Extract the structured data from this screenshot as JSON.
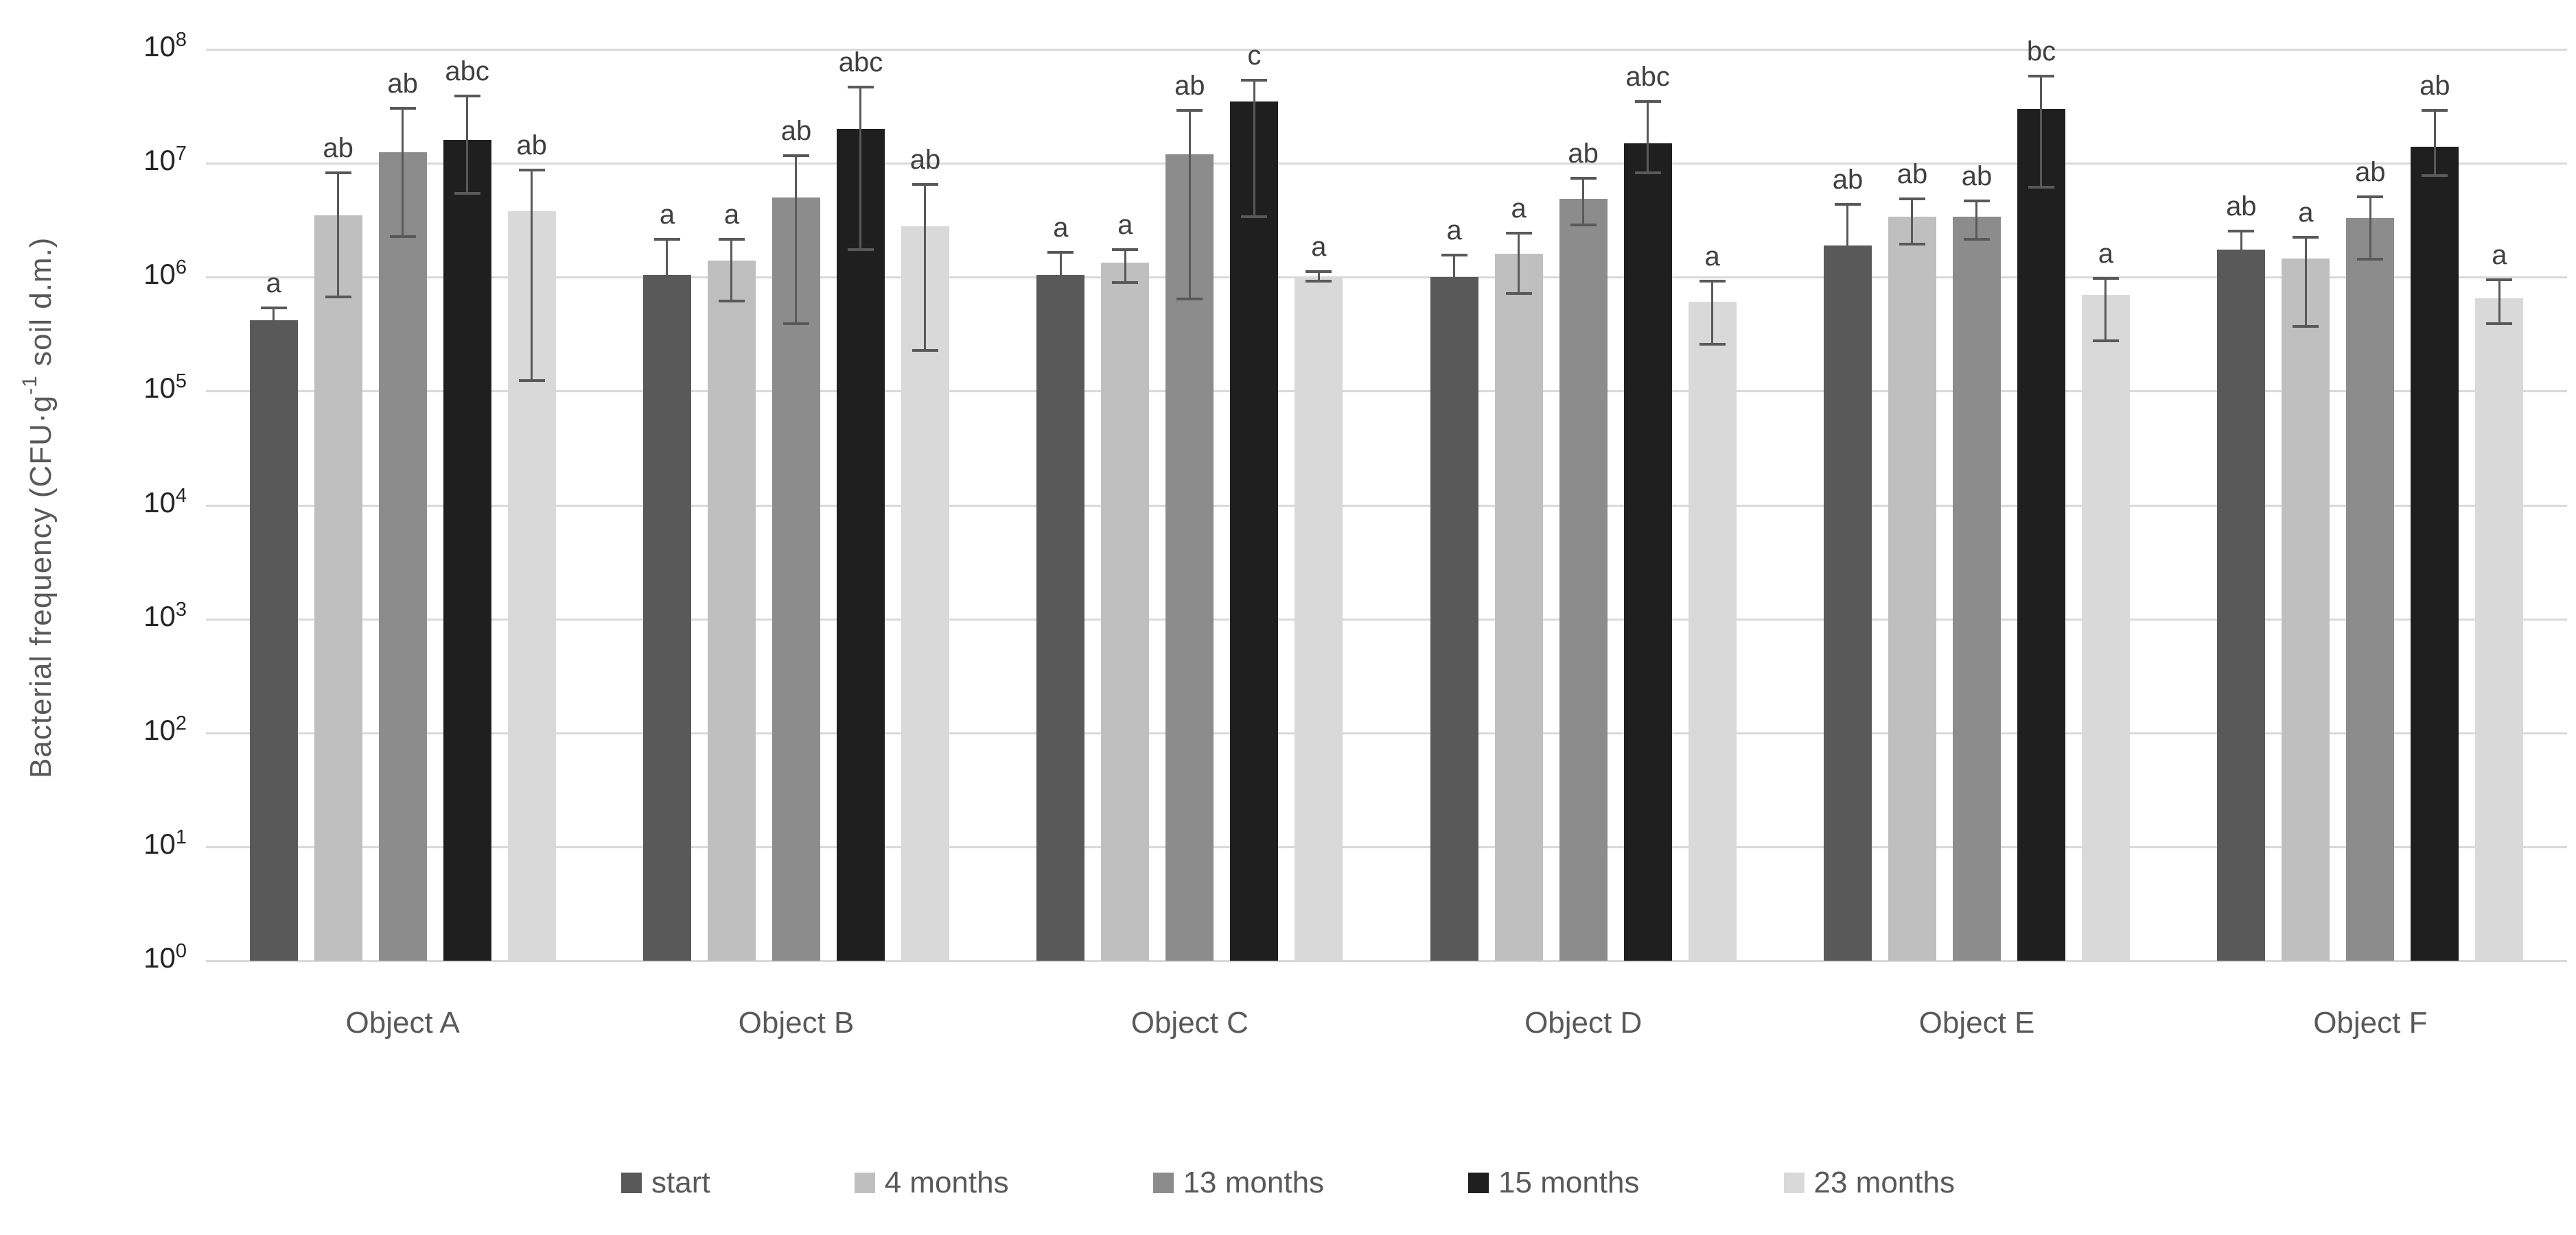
{
  "y_axis_title": {
    "prefix": "Bacterial frequency (CFU·g",
    "sup": "-1",
    "suffix": " soil d.m.)"
  },
  "chart_data": {
    "type": "bar",
    "title": "",
    "xlabel": "",
    "ylabel": "Bacterial frequency (CFU·g^-1 soil d.m.)",
    "y_scale": "log10",
    "grid": true,
    "legend_position": "bottom",
    "ylim_exponents": [
      0,
      8
    ],
    "y_ticks_exponents": [
      0,
      1,
      2,
      3,
      4,
      5,
      6,
      7,
      8
    ],
    "y_tick_base": "10",
    "categories": [
      "Object A",
      "Object B",
      "Object C",
      "Object D",
      "Object E",
      "Object F"
    ],
    "series": [
      {
        "name": "start",
        "color": "#595959",
        "values": [
          420000,
          1050000,
          1050000,
          1000000,
          1900000,
          1750000
        ],
        "err_low": [
          130000,
          180000,
          240000,
          270000,
          800000,
          350000
        ],
        "err_high": [
          550000,
          2200000,
          1700000,
          1600000,
          4500000,
          2600000
        ],
        "sig": [
          "a",
          "a",
          "a",
          "a",
          "ab",
          "ab"
        ]
      },
      {
        "name": "4 months",
        "color": "#bfbfbf",
        "values": [
          3500000,
          1400000,
          1350000,
          1600000,
          3400000,
          1450000
        ],
        "err_low": [
          650000,
          600000,
          870000,
          700000,
          1900000,
          360000
        ],
        "err_high": [
          8500000,
          2200000,
          1800000,
          2500000,
          5000000,
          2300000
        ],
        "sig": [
          "ab",
          "a",
          "a",
          "a",
          "ab",
          "a"
        ]
      },
      {
        "name": "13 months",
        "color": "#8c8c8c",
        "values": [
          12500000,
          5000000,
          12000000,
          4900000,
          3400000,
          3300000
        ],
        "err_low": [
          2200000,
          380000,
          630000,
          2800000,
          2100000,
          1400000
        ],
        "err_high": [
          31000000,
          12000000,
          30000000,
          7600000,
          4800000,
          5200000
        ],
        "sig": [
          "ab",
          "ab",
          "ab",
          "ab",
          "ab",
          "ab"
        ]
      },
      {
        "name": "15 months",
        "color": "#1f1f1f",
        "values": [
          16000000,
          20000000,
          35000000,
          15000000,
          30000000,
          14000000
        ],
        "err_low": [
          5300000,
          1700000,
          3300000,
          8000000,
          6000000,
          7600000
        ],
        "err_high": [
          40000000,
          48000000,
          55000000,
          36000000,
          60000000,
          30000000
        ],
        "sig": [
          "abc",
          "abc",
          "c",
          "abc",
          "bc",
          "ab"
        ]
      },
      {
        "name": "23 months",
        "color": "#d9d9d9",
        "values": [
          3800000,
          2800000,
          1000000,
          610000,
          700000,
          650000
        ],
        "err_low": [
          120000,
          220000,
          900000,
          250000,
          270000,
          380000
        ],
        "err_high": [
          9000000,
          6700000,
          1150000,
          950000,
          1000000,
          970000
        ],
        "sig": [
          "ab",
          "ab",
          "a",
          "a",
          "a",
          "a"
        ]
      }
    ],
    "style": {
      "gridline_color": "#d9d9d9",
      "error_bar_color": "#595959",
      "tick_label_color": "#262626",
      "category_label_color": "#595959",
      "legend_label_color": "#595959",
      "sig_label_color": "#404040",
      "background": "#ffffff"
    }
  }
}
